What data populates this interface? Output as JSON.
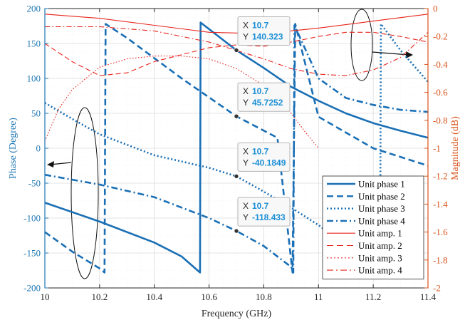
{
  "chart_data": {
    "type": "line",
    "xlabel": "Frequency (GHz)",
    "ylabel_left": "Phase (Degree)",
    "ylabel_right": "Magnitude (dB)",
    "xlim": [
      10,
      11.4
    ],
    "ylim_left": [
      -200,
      200
    ],
    "ylim_right": [
      -2,
      0
    ],
    "x_ticks": [
      "10",
      "10.2",
      "10.4",
      "10.6",
      "10.8",
      "11",
      "11.2",
      "11.4"
    ],
    "y_left_ticks": [
      "-200",
      "-150",
      "-100",
      "-50",
      "0",
      "50",
      "100",
      "150",
      "200"
    ],
    "y_right_ticks": [
      "-2",
      "-1.8",
      "-1.6",
      "-1.4",
      "-1.2",
      "-1",
      "-0.8",
      "-0.6",
      "-0.4",
      "-0.2",
      "0"
    ],
    "grid": true,
    "legend_position": "bottom-right",
    "colors": {
      "phase": "#1a6fb5",
      "amplitude": "#e8241c",
      "left_axis": "#1f77b4",
      "right_axis": "#d95319"
    },
    "series": [
      {
        "name": "Unit phase 1",
        "axis": "left",
        "style": "solid",
        "x": [
          10.0,
          10.2,
          10.4,
          10.5,
          10.567,
          10.569,
          10.7,
          10.8,
          10.9,
          11.0,
          11.1,
          11.2,
          11.3,
          11.4
        ],
        "y": [
          -78,
          -105,
          -135,
          -155,
          -178,
          180,
          140.3,
          115,
          88,
          68,
          50,
          36,
          25,
          15
        ]
      },
      {
        "name": "Unit phase 2",
        "axis": "left",
        "style": "dashed",
        "x": [
          10.0,
          10.1,
          10.2,
          10.218,
          10.222,
          10.3,
          10.5,
          10.7,
          10.85,
          10.905,
          10.915,
          11.0,
          11.2,
          11.4
        ],
        "y": [
          -120,
          -148,
          -172,
          -178,
          178,
          158,
          100,
          45.7,
          15,
          -178,
          178,
          45,
          0,
          -25
        ]
      },
      {
        "name": "Unit phase 3",
        "axis": "left",
        "style": "dotted",
        "x": [
          10.0,
          10.1,
          10.2,
          10.4,
          10.6,
          10.7,
          10.8,
          10.9,
          11.0,
          11.1,
          11.2,
          11.225,
          11.228,
          11.3,
          11.4
        ],
        "y": [
          65,
          42,
          20,
          -10,
          -28,
          -40.2,
          -62,
          -85,
          -110,
          -140,
          -165,
          -178,
          178,
          140,
          95
        ]
      },
      {
        "name": "Unit phase 4",
        "axis": "left",
        "style": "dashdot",
        "x": [
          10.0,
          10.2,
          10.4,
          10.6,
          10.7,
          10.8,
          10.9,
          10.908,
          10.912,
          11.0,
          11.1,
          11.2,
          11.3,
          11.4
        ],
        "y": [
          -38,
          -52,
          -70,
          -100,
          -118.4,
          -140,
          -170,
          -178,
          176,
          100,
          72,
          62,
          55,
          52
        ]
      },
      {
        "name": "Unit amp. 1",
        "axis": "right",
        "style": "solid",
        "x": [
          10.0,
          10.2,
          10.4,
          10.6,
          10.8,
          11.0,
          11.2,
          11.4
        ],
        "y": [
          -0.04,
          -0.07,
          -0.12,
          -0.17,
          -0.18,
          -0.14,
          -0.09,
          -0.04
        ]
      },
      {
        "name": "Unit amp. 2",
        "axis": "right",
        "style": "dashed",
        "x": [
          10.0,
          10.1,
          10.2,
          10.3,
          10.4,
          10.6,
          10.7,
          10.8,
          10.9,
          11.0,
          11.1,
          11.2,
          11.3,
          11.4
        ],
        "y": [
          -0.25,
          -0.38,
          -0.48,
          -0.46,
          -0.38,
          -0.28,
          -0.26,
          -0.27,
          -0.24,
          -0.2,
          -0.17,
          -0.17,
          -0.2,
          -0.24
        ]
      },
      {
        "name": "Unit amp. 3",
        "axis": "right",
        "style": "dotted",
        "x": [
          10.0,
          10.05,
          10.1,
          10.2,
          10.3,
          10.4,
          10.5,
          10.6,
          10.7,
          10.8,
          10.85,
          10.9,
          10.95,
          11.0
        ],
        "y": [
          -0.95,
          -0.72,
          -0.58,
          -0.42,
          -0.36,
          -0.34,
          -0.34,
          -0.36,
          -0.43,
          -0.55,
          -0.63,
          -0.75,
          -0.88,
          -1.0
        ]
      },
      {
        "name": "Unit amp. 4",
        "axis": "right",
        "style": "dashdot",
        "x": [
          10.0,
          10.2,
          10.4,
          10.6,
          10.8,
          10.9,
          11.0,
          11.1,
          11.2,
          11.3,
          11.4
        ],
        "y": [
          -0.13,
          -0.13,
          -0.16,
          -0.24,
          -0.36,
          -0.43,
          -0.47,
          -0.48,
          -0.44,
          -0.35,
          -0.17
        ]
      }
    ],
    "datatips": [
      {
        "x_label": "X",
        "y_label": "Y",
        "x": "10.7",
        "y": "140.323",
        "series": "Unit phase 1"
      },
      {
        "x_label": "X",
        "y_label": "Y",
        "x": "10.7",
        "y": "45.7252",
        "series": "Unit phase 2"
      },
      {
        "x_label": "X",
        "y_label": "Y",
        "x": "10.7",
        "y": "-40.1849",
        "series": "Unit phase 3"
      },
      {
        "x_label": "X",
        "y_label": "Y",
        "x": "10.7",
        "y": "-118.433",
        "series": "Unit phase 4"
      }
    ]
  }
}
